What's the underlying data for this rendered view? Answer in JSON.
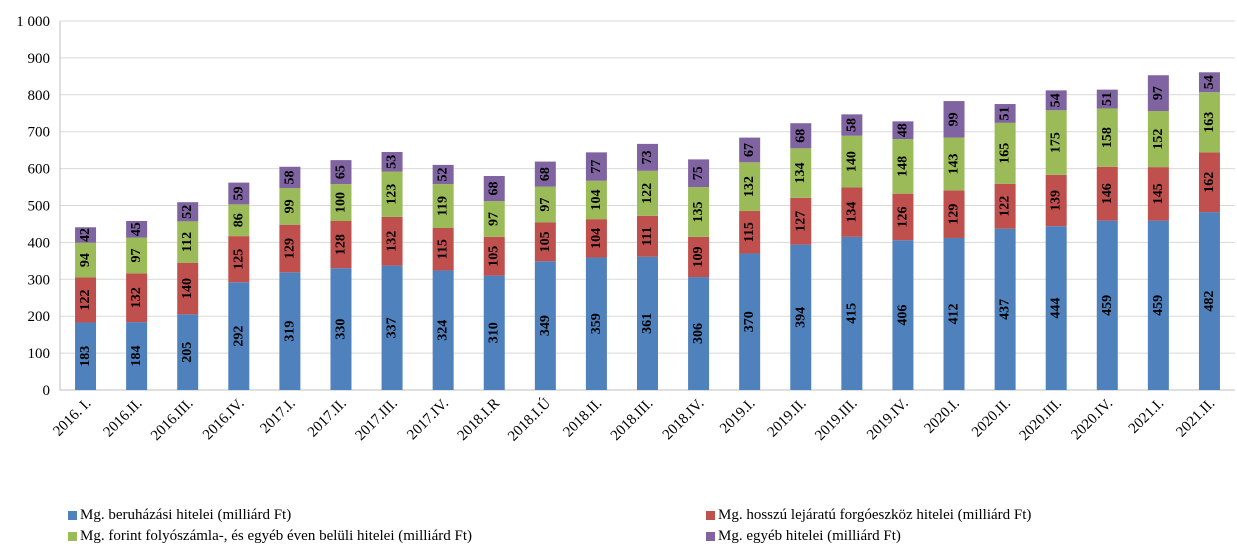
{
  "chart_data": {
    "type": "bar",
    "stacked": true,
    "title": "",
    "xlabel": "",
    "ylabel": "",
    "ylim": [
      0,
      1000
    ],
    "yticks": [
      0,
      100,
      200,
      300,
      400,
      500,
      600,
      700,
      800,
      900,
      1000
    ],
    "ytick_labels": [
      "0",
      "100",
      "200",
      "300",
      "400",
      "500",
      "600",
      "700",
      "800",
      "900",
      "1 000"
    ],
    "grid": true,
    "legend_position": "bottom",
    "categories": [
      "2016. I.",
      "2016.II.",
      "2016.III.",
      "2016.IV.",
      "2017.I.",
      "2017.II.",
      "2017.III.",
      "2017.IV.",
      "2018.I.R",
      "2018.I.Ú",
      "2018.II.",
      "2018.III.",
      "2018.IV.",
      "2019.I.",
      "2019.II.",
      "2019.III.",
      "2019.IV.",
      "2020.I.",
      "2020.II.",
      "2020.III.",
      "2020.IV.",
      "2021.I.",
      "2021.II."
    ],
    "series": [
      {
        "name": "Mg. beruházási hitelei (milliárd Ft)",
        "color": "#4f81bd",
        "values": [
          183,
          184,
          205,
          292,
          319,
          330,
          337,
          324,
          310,
          349,
          359,
          361,
          306,
          370,
          394,
          415,
          406,
          412,
          437,
          444,
          459,
          459,
          482
        ]
      },
      {
        "name": "Mg. hosszú lejáratú forgóeszköz hitelei (milliárd Ft)",
        "color": "#c0504d",
        "values": [
          122,
          132,
          140,
          125,
          129,
          128,
          132,
          115,
          105,
          105,
          104,
          111,
          109,
          115,
          127,
          134,
          126,
          129,
          122,
          139,
          146,
          145,
          162
        ]
      },
      {
        "name": "Mg. forint folyószámla-, és egyéb éven belüli hitelei (milliárd Ft)",
        "color": "#9bbb59",
        "values": [
          94,
          97,
          112,
          86,
          99,
          100,
          123,
          119,
          97,
          97,
          104,
          122,
          135,
          132,
          134,
          140,
          148,
          143,
          165,
          175,
          158,
          152,
          163
        ]
      },
      {
        "name": "Mg. egyéb hitelei (milliárd Ft)",
        "color": "#8064a2",
        "values": [
          42,
          45,
          52,
          59,
          58,
          65,
          53,
          52,
          68,
          68,
          77,
          73,
          75,
          67,
          68,
          58,
          48,
          99,
          51,
          54,
          51,
          97,
          54
        ]
      }
    ]
  }
}
